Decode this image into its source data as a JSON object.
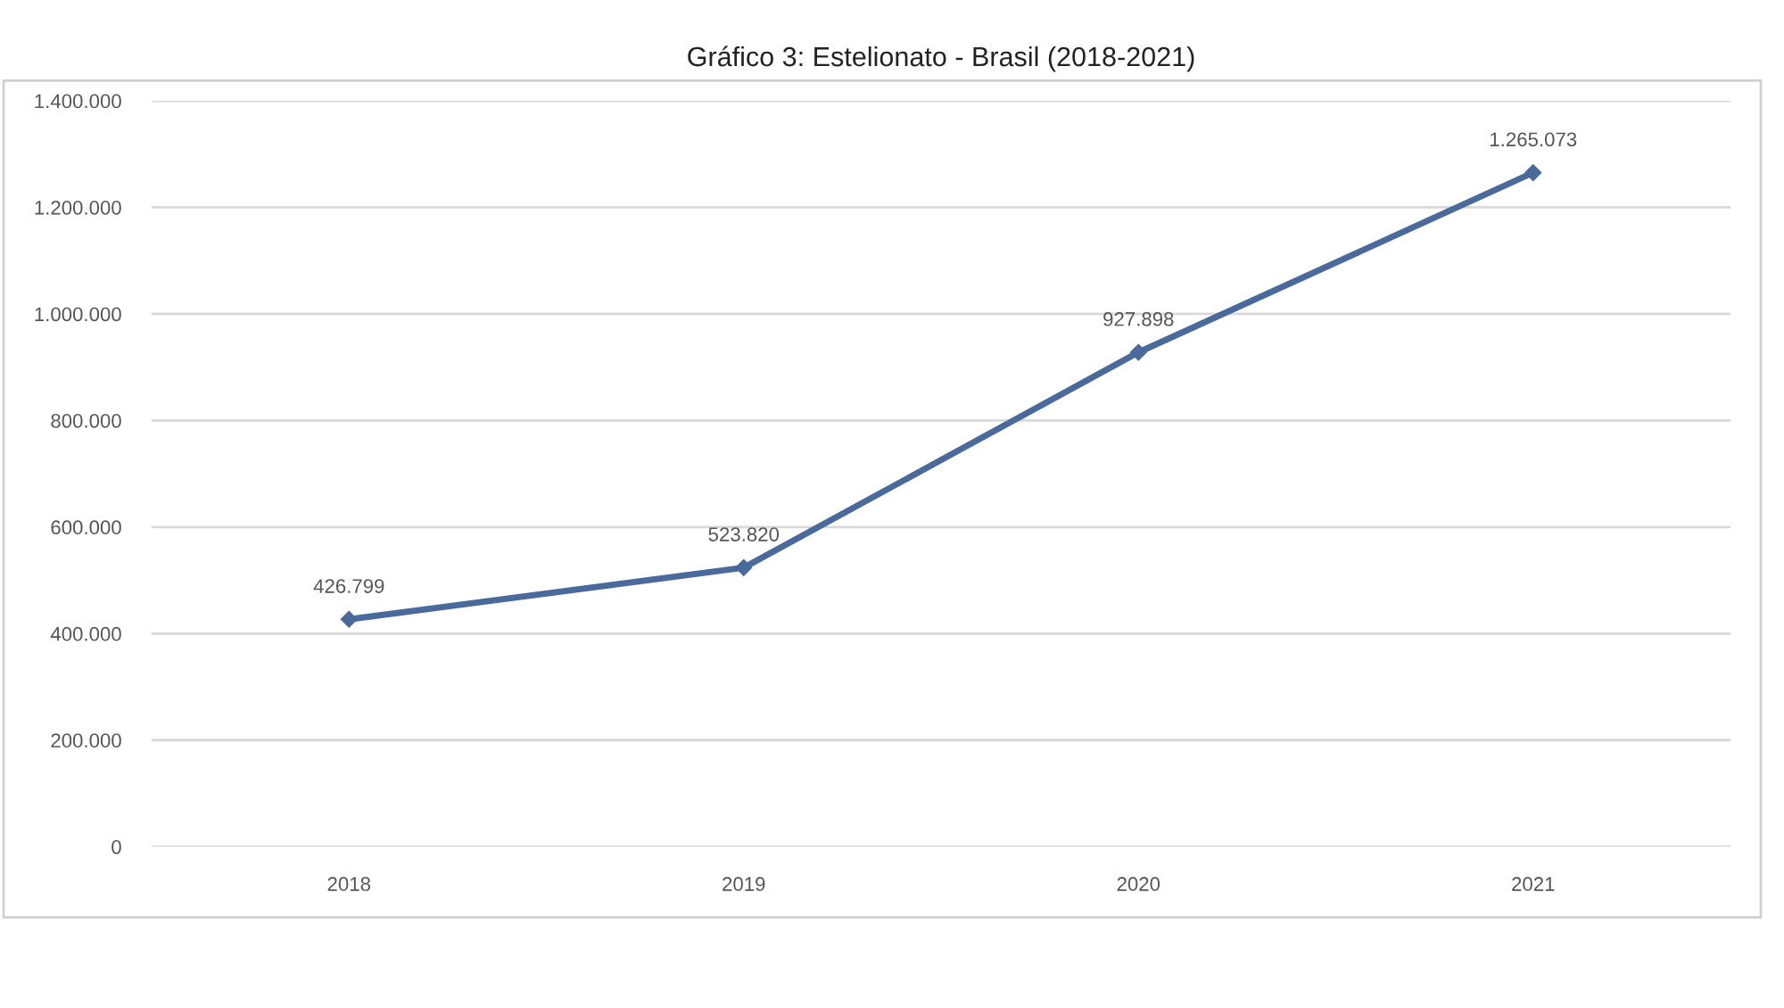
{
  "chart_data": {
    "type": "line",
    "title": "Gráfico 3: Estelionato - Brasil (2018-2021)",
    "categories": [
      "2018",
      "2019",
      "2020",
      "2021"
    ],
    "series": [
      {
        "color": "#4a6a9c",
        "values": [
          426799,
          523820,
          927898,
          1265073
        ],
        "value_labels": [
          "426.799",
          "523.820",
          "927.898",
          "1.265.073"
        ]
      }
    ],
    "ylim": [
      0,
      1400000
    ],
    "yticks": [
      {
        "value": 0,
        "label": "0"
      },
      {
        "value": 200000,
        "label": "200.000"
      },
      {
        "value": 400000,
        "label": "400.000"
      },
      {
        "value": 600000,
        "label": "600.000"
      },
      {
        "value": 800000,
        "label": "800.000"
      },
      {
        "value": 1000000,
        "label": "1.000.000"
      },
      {
        "value": 1200000,
        "label": "1.200.000"
      },
      {
        "value": 1400000,
        "label": "1.400.000"
      }
    ],
    "grid": "y",
    "marker": "diamond",
    "line_style": "solid",
    "legend": false
  }
}
